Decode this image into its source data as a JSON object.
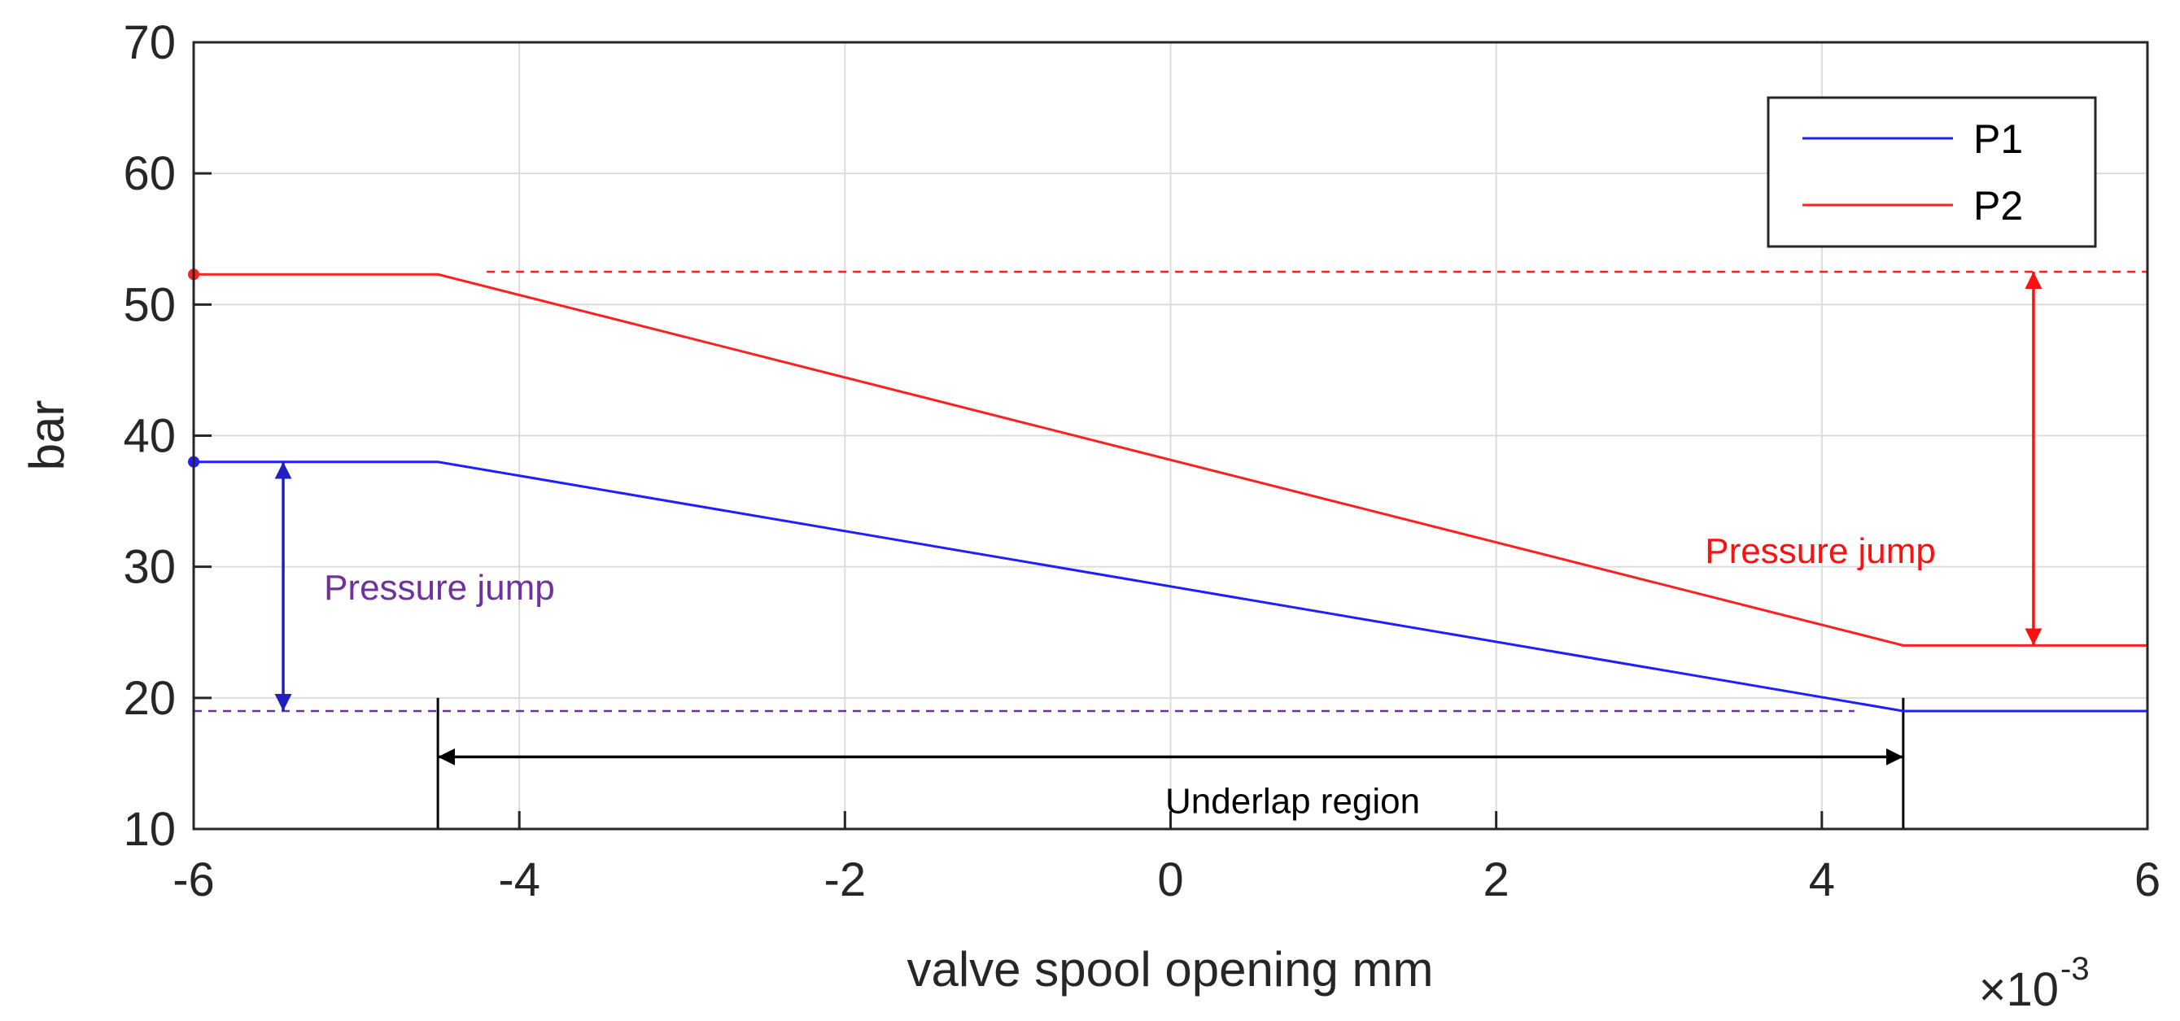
{
  "chart_data": {
    "type": "line",
    "xlabel": "valve spool opening mm",
    "ylabel": "bar",
    "x_multiplier_label": "×10",
    "x_multiplier_exponent": "-3",
    "xlim": [
      -6,
      6
    ],
    "ylim": [
      10,
      70
    ],
    "xticks": [
      -6,
      -4,
      -2,
      0,
      2,
      4,
      6
    ],
    "yticks": [
      10,
      20,
      30,
      40,
      50,
      60,
      70
    ],
    "grid": true,
    "legend_position": "top-right",
    "series": [
      {
        "name": "P1",
        "color": "#1f1fff",
        "x": [
          -6,
          -4.5,
          4.5,
          6
        ],
        "y": [
          38,
          38,
          19,
          19
        ]
      },
      {
        "name": "P2",
        "color": "#ff2020",
        "x": [
          -6,
          -4.5,
          4.5,
          6
        ],
        "y": [
          52.3,
          52.3,
          24,
          24
        ]
      }
    ],
    "reference_lines": [
      {
        "color": "#ff2020",
        "y": 52.5,
        "x_from": -4.2,
        "x_to": 6
      },
      {
        "color": "#7030a0",
        "y": 19,
        "x_from": -6,
        "x_to": 4.2
      }
    ],
    "annotations": [
      {
        "text": "Pressure jump",
        "color": "#ff1010",
        "x": 4.7,
        "y": 30.3,
        "anchor": "end"
      },
      {
        "text": "Pressure jump",
        "color": "#7030a0",
        "x": -5.2,
        "y": 27.5,
        "anchor": "start"
      },
      {
        "text": "Underlap region",
        "color": "#000000",
        "x": 0.75,
        "y": 11.2,
        "anchor": "middle"
      }
    ],
    "arrows": [
      {
        "color": "#ff1010",
        "x1": 5.3,
        "y1": 52.5,
        "x2": 5.3,
        "y2": 24
      },
      {
        "color": "#2020c0",
        "x1": -5.45,
        "y1": 38,
        "x2": -5.45,
        "y2": 19
      },
      {
        "color": "#000000",
        "x1": -4.5,
        "y1": 15.5,
        "x2": 4.5,
        "y2": 15.5
      }
    ],
    "boundary_lines": [
      {
        "color": "#000000",
        "x": -4.5,
        "y_from": 10,
        "y_to": 20
      },
      {
        "color": "#000000",
        "x": 4.5,
        "y_from": 10,
        "y_to": 20
      }
    ]
  }
}
